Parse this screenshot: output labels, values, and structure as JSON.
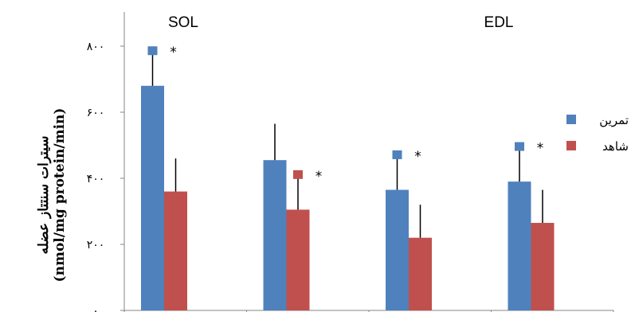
{
  "chart_data": {
    "type": "bar",
    "ylabel_line1": "سیترات سنتتاز عضله",
    "ylabel_line2": "(nmol/mg protein/min)",
    "ylim": [
      0,
      800
    ],
    "yticks": [
      {
        "value": 0,
        "label": "۰"
      },
      {
        "value": 200,
        "label": "۲۰۰"
      },
      {
        "value": 400,
        "label": "۴۰۰"
      },
      {
        "value": 600,
        "label": "۶۰۰"
      },
      {
        "value": 800,
        "label": "۸۰۰"
      }
    ],
    "panel_labels": [
      "SOL",
      "EDL"
    ],
    "groups": 4,
    "series": [
      {
        "name": "تمرین",
        "color": "#4F81BD",
        "values": [
          680,
          455,
          365,
          390
        ],
        "errors": [
          105,
          110,
          105,
          105
        ]
      },
      {
        "name": "شاهد",
        "color": "#C0504D",
        "values": [
          360,
          305,
          220,
          265
        ],
        "errors": [
          100,
          105,
          100,
          100
        ]
      }
    ],
    "significance": [
      {
        "group": 0,
        "series": 0,
        "label": "*"
      },
      {
        "group": 1,
        "series": 1,
        "label": "*"
      },
      {
        "group": 2,
        "series": 0,
        "label": "*"
      },
      {
        "group": 3,
        "series": 0,
        "label": "*"
      }
    ],
    "legend_position": "right",
    "grid": false
  }
}
